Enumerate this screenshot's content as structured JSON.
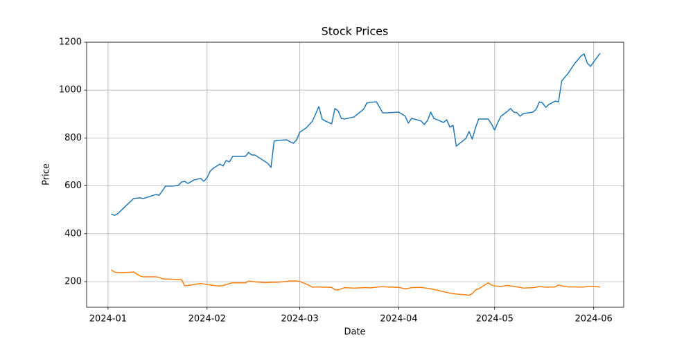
{
  "chart_data": {
    "type": "line",
    "title": "Stock Prices",
    "x_label": "Date",
    "y_label": "Price",
    "x": [
      1,
      2,
      3,
      5,
      8,
      10,
      11,
      15,
      16,
      17,
      18,
      20,
      22,
      23,
      24,
      25,
      27,
      29,
      30,
      31,
      32,
      33,
      35,
      36,
      37,
      38,
      39,
      43,
      44,
      45,
      46,
      49,
      50,
      51,
      52,
      53,
      56,
      57,
      58,
      59,
      60,
      62,
      63,
      64,
      66,
      67,
      68,
      70,
      71,
      72,
      73,
      74,
      77,
      80,
      81,
      82,
      84,
      86,
      87,
      91,
      93,
      94,
      95,
      98,
      99,
      100,
      101,
      102,
      105,
      106,
      107,
      108,
      109,
      112,
      113,
      114,
      115,
      116,
      119,
      120,
      121,
      122,
      123,
      125,
      126,
      127,
      128,
      129,
      130,
      133,
      134,
      135,
      136,
      137,
      138,
      140,
      141,
      142,
      144,
      146,
      148,
      149,
      150,
      151,
      154
    ],
    "series": [
      {
        "color": "#1f77b4",
        "values": [
          483,
          477,
          483,
          509,
          547,
          550,
          547,
          564,
          561,
          579,
          599,
          599,
          602,
          616,
          619,
          610,
          625,
          631,
          619,
          634,
          662,
          674,
          691,
          683,
          706,
          700,
          723,
          723,
          740,
          729,
          729,
          703,
          694,
          677,
          787,
          790,
          792,
          784,
          778,
          792,
          824,
          842,
          856,
          871,
          931,
          879,
          871,
          859,
          923,
          914,
          882,
          879,
          888,
          920,
          946,
          949,
          951,
          905,
          905,
          908,
          891,
          862,
          882,
          871,
          856,
          873,
          908,
          882,
          865,
          876,
          845,
          853,
          766,
          798,
          827,
          795,
          842,
          879,
          879,
          859,
          833,
          865,
          891,
          911,
          923,
          908,
          905,
          891,
          902,
          908,
          920,
          951,
          946,
          928,
          940,
          954,
          951,
          1038,
          1070,
          1110,
          1142,
          1151,
          1113,
          1099,
          1154
        ]
      },
      {
        "color": "#ff7f0e",
        "values": [
          249,
          240,
          238,
          238,
          240,
          224,
          220,
          220,
          218,
          212,
          211,
          210,
          209,
          208,
          183,
          184,
          188,
          192,
          190,
          188,
          186,
          184,
          182,
          184,
          188,
          192,
          195,
          195,
          202,
          201,
          199,
          196,
          196,
          197,
          197,
          197,
          201,
          203,
          203,
          203,
          200,
          190,
          184,
          177,
          178,
          177,
          177,
          176,
          166,
          165,
          170,
          175,
          173,
          175,
          175,
          174,
          177,
          179,
          178,
          176,
          170,
          172,
          175,
          176,
          174,
          172,
          170,
          167,
          158,
          155,
          152,
          150,
          148,
          145,
          143,
          150,
          165,
          170,
          195,
          186,
          182,
          181,
          180,
          184,
          182,
          180,
          178,
          176,
          173,
          175,
          177,
          180,
          178,
          177,
          177,
          178,
          186,
          182,
          178,
          178,
          177,
          178,
          179,
          180,
          178
        ]
      }
    ],
    "xlim": [
      -6.7,
      161.4
    ],
    "xticks": [
      {
        "value": 0,
        "label": "2024-01"
      },
      {
        "value": 31,
        "label": "2024-02"
      },
      {
        "value": 60,
        "label": "2024-03"
      },
      {
        "value": 91,
        "label": "2024-04"
      },
      {
        "value": 121,
        "label": "2024-05"
      },
      {
        "value": 152,
        "label": "2024-06"
      }
    ],
    "ylim": [
      93,
      1200
    ],
    "yticks": [
      200,
      400,
      600,
      800,
      1000,
      1200
    ],
    "grid": true
  }
}
